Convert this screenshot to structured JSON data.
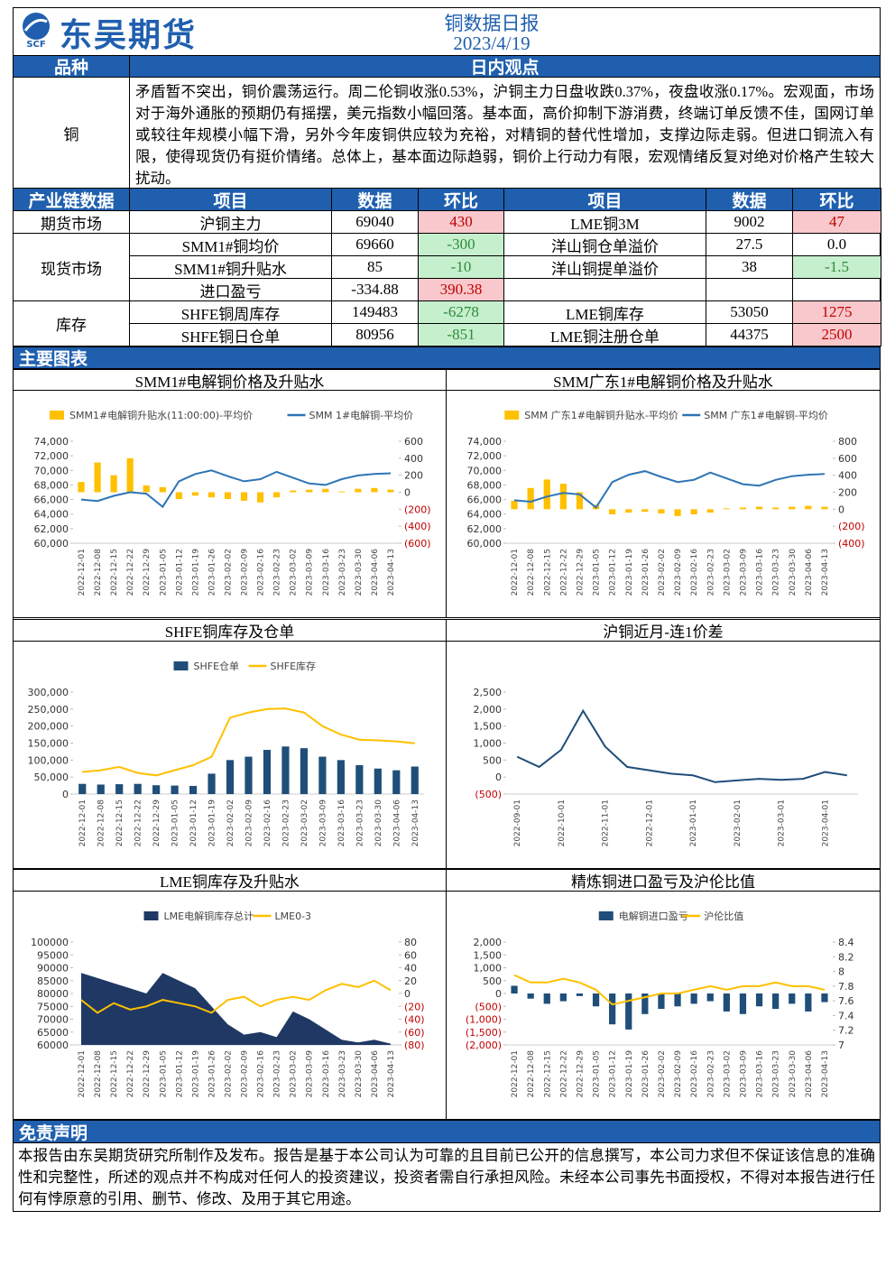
{
  "header": {
    "logo": "东吴期货",
    "logo_mark": "SCF",
    "title": "铜数据日报",
    "date": "2023/4/19"
  },
  "view": {
    "col1": "品种",
    "col2": "日内观点",
    "variety": "铜",
    "text": "矛盾暂不突出，铜价震荡运行。周二伦铜收涨0.53%，沪铜主力日盘收跌0.37%，夜盘收涨0.17%。宏观面，市场对于海外通胀的预期仍有摇摆，美元指数小幅回落。基本面，高价抑制下游消费，终端订单反馈不佳，国网订单或较往年规模小幅下滑，另外今年废铜供应较为充裕，对精铜的替代性增加，支撑边际走弱。但进口铜流入有限，使得现货仍有挺价情绪。总体上，基本面边际趋弱，铜价上行动力有限，宏观情绪反复对绝对价格产生较大扰动。"
  },
  "table": {
    "header": [
      "产业链数据",
      "项目",
      "数据",
      "环比",
      "项目",
      "数据",
      "环比"
    ],
    "groups": [
      {
        "name": "期货市场",
        "rows": [
          [
            "沪铜主力",
            "69040",
            "430",
            "LME铜3M",
            "9002",
            "47"
          ]
        ]
      },
      {
        "name": "现货市场",
        "rows": [
          [
            "SMM1#铜均价",
            "69660",
            "-300",
            "洋山铜仓单溢价",
            "27.5",
            "0.0"
          ],
          [
            "SMM1#铜升贴水",
            "85",
            "-10",
            "洋山铜提单溢价",
            "38",
            "-1.5"
          ],
          [
            "进口盈亏",
            "-334.88",
            "390.38"
          ]
        ]
      },
      {
        "name": "库存",
        "rows": [
          [
            "SHFE铜周库存",
            "149483",
            "-6278",
            "LME铜库存",
            "53050",
            "1275"
          ],
          [
            "SHFE铜日仓单",
            "80956",
            "-851",
            "LME铜注册仓单",
            "44375",
            "2500"
          ]
        ]
      }
    ]
  },
  "charts_title": "主要图表",
  "chart_data": [
    {
      "type": "combo",
      "title": "SMM1#电解铜价格及升贴水",
      "categories": [
        "2022-12-01",
        "2022-12-08",
        "2022-12-15",
        "2022-12-22",
        "2022-12-29",
        "2023-01-05",
        "2023-01-12",
        "2023-01-19",
        "2023-01-26",
        "2023-02-02",
        "2023-02-09",
        "2023-02-16",
        "2023-02-23",
        "2023-03-02",
        "2023-03-09",
        "2023-03-16",
        "2023-03-23",
        "2023-03-30",
        "2023-04-06",
        "2023-04-13"
      ],
      "series": [
        {
          "name": "SMM1#电解铜升贴水(11:00:00)-平均价",
          "type": "bar",
          "axis": "y2",
          "color": "#ffc000",
          "values": [
            120,
            350,
            200,
            400,
            80,
            60,
            -80,
            -40,
            -60,
            -80,
            -100,
            -120,
            -60,
            20,
            30,
            40,
            10,
            40,
            50,
            30
          ]
        },
        {
          "name": "SMM 1#电解铜-平均价",
          "type": "line",
          "color": "#2e75b6",
          "values": [
            66000,
            65800,
            66500,
            67000,
            66800,
            65000,
            68500,
            69500,
            70000,
            69200,
            68500,
            68800,
            69800,
            69000,
            68200,
            68000,
            68800,
            69300,
            69500,
            69600
          ]
        }
      ],
      "ylim": [
        60000,
        74000
      ],
      "yticks": [
        {
          "value": 60000,
          "label": "60,000"
        },
        {
          "value": 62000,
          "label": "62,000"
        },
        {
          "value": 64000,
          "label": "64,000"
        },
        {
          "value": 66000,
          "label": "66,000"
        },
        {
          "value": 68000,
          "label": "68,000"
        },
        {
          "value": 70000,
          "label": "70,000"
        },
        {
          "value": 72000,
          "label": "72,000"
        },
        {
          "value": 74000,
          "label": "74,000"
        }
      ],
      "y2lim": [
        -600,
        600
      ],
      "y2ticks": [
        {
          "value": -600,
          "label": "(600)"
        },
        {
          "value": -400,
          "label": "(400)"
        },
        {
          "value": -200,
          "label": "(200)"
        },
        0,
        200,
        400,
        600
      ]
    },
    {
      "type": "combo",
      "title": "SMM广东1#电解铜价格及升贴水",
      "categories": [
        "2022-12-01",
        "2022-12-08",
        "2022-12-15",
        "2022-12-22",
        "2022-12-29",
        "2023-01-05",
        "2023-01-12",
        "2023-01-19",
        "2023-01-26",
        "2023-02-02",
        "2023-02-09",
        "2023-02-16",
        "2023-02-23",
        "2023-03-02",
        "2023-03-09",
        "2023-03-16",
        "2023-03-23",
        "2023-03-30",
        "2023-04-06",
        "2023-04-13"
      ],
      "series": [
        {
          "name": "SMM 广东1#电解铜升贴水-平均价",
          "type": "bar",
          "axis": "y2",
          "color": "#ffc000",
          "values": [
            100,
            250,
            350,
            300,
            200,
            50,
            -60,
            -40,
            -30,
            -50,
            -80,
            -60,
            -40,
            10,
            20,
            30,
            20,
            30,
            40,
            30
          ]
        },
        {
          "name": "SMM 广东1#电解铜-平均价",
          "type": "line",
          "color": "#2e75b6",
          "values": [
            65900,
            65700,
            66400,
            66900,
            66700,
            64900,
            68400,
            69400,
            69900,
            69100,
            68400,
            68700,
            69700,
            68900,
            68100,
            67900,
            68700,
            69200,
            69400,
            69500
          ]
        }
      ],
      "ylim": [
        60000,
        74000
      ],
      "yticks": [
        {
          "value": 60000,
          "label": "60,000"
        },
        {
          "value": 62000,
          "label": "62,000"
        },
        {
          "value": 64000,
          "label": "64,000"
        },
        {
          "value": 66000,
          "label": "66,000"
        },
        {
          "value": 68000,
          "label": "68,000"
        },
        {
          "value": 70000,
          "label": "70,000"
        },
        {
          "value": 72000,
          "label": "72,000"
        },
        {
          "value": 74000,
          "label": "74,000"
        }
      ],
      "y2lim": [
        -400,
        800
      ],
      "y2ticks": [
        {
          "value": -400,
          "label": "(400)"
        },
        {
          "value": -200,
          "label": "(200)"
        },
        0,
        200,
        400,
        600,
        800
      ]
    },
    {
      "type": "combo",
      "title": "SHFE铜库存及仓单",
      "categories": [
        "2022-12-01",
        "2022-12-08",
        "2022-12-15",
        "2022-12-22",
        "2022-12-29",
        "2023-01-05",
        "2023-01-12",
        "2023-01-19",
        "2023-02-02",
        "2023-02-09",
        "2023-02-16",
        "2023-02-23",
        "2023-03-02",
        "2023-03-09",
        "2023-03-16",
        "2023-03-23",
        "2023-03-30",
        "2023-04-06",
        "2023-04-13"
      ],
      "series": [
        {
          "name": "SHFE仓单",
          "type": "bar",
          "color": "#1f4e79",
          "values": [
            30000,
            28000,
            29000,
            30000,
            26000,
            25000,
            24000,
            60000,
            100000,
            110000,
            130000,
            140000,
            135000,
            110000,
            100000,
            85000,
            75000,
            70000,
            80956
          ]
        },
        {
          "name": "SHFE库存",
          "type": "line",
          "color": "#ffc000",
          "values": [
            65000,
            70000,
            80000,
            62000,
            55000,
            70000,
            85000,
            110000,
            225000,
            240000,
            250000,
            252000,
            240000,
            200000,
            175000,
            160000,
            158000,
            155000,
            149483
          ]
        }
      ],
      "ylim": [
        0,
        300000
      ],
      "yticks": [
        0,
        {
          "value": 50000,
          "label": "50,000"
        },
        {
          "value": 100000,
          "label": "100,000"
        },
        {
          "value": 150000,
          "label": "150,000"
        },
        {
          "value": 200000,
          "label": "200,000"
        },
        {
          "value": 250000,
          "label": "250,000"
        },
        {
          "value": 300000,
          "label": "300,000"
        }
      ]
    },
    {
      "type": "line",
      "title": "沪铜近月-连1价差",
      "categories": [
        "2022-09-01",
        null,
        "2022-10-01",
        null,
        "2022-11-01",
        null,
        "2022-12-01",
        null,
        "2023-01-01",
        null,
        "2023-02-01",
        null,
        "2023-03-01",
        null,
        "2023-04-01",
        null
      ],
      "values": [
        600,
        300,
        800,
        1950,
        900,
        300,
        200,
        100,
        50,
        -150,
        -100,
        -50,
        -80,
        -50,
        150,
        50
      ],
      "color": "#1f4e79",
      "ylim": [
        -500,
        2500
      ],
      "yticks": [
        {
          "value": -500,
          "label": "(500)"
        },
        0,
        500,
        {
          "value": 1000,
          "label": "1,000"
        },
        {
          "value": 1500,
          "label": "1,500"
        },
        {
          "value": 2000,
          "label": "2,000"
        },
        {
          "value": 2500,
          "label": "2,500"
        }
      ]
    },
    {
      "type": "combo",
      "title": "LME铜库存及升贴水",
      "categories": [
        "2022-12-01",
        "2022-12-08",
        "2022-12-15",
        "2022-12-22",
        "2022-12-29",
        "2023-01-05",
        "2023-01-12",
        "2023-01-19",
        "2023-01-26",
        "2023-02-02",
        "2023-02-09",
        "2023-02-16",
        "2023-02-23",
        "2023-03-02",
        "2023-03-09",
        "2023-03-16",
        "2023-03-23",
        "2023-03-30",
        "2023-04-06",
        "2023-04-13"
      ],
      "series": [
        {
          "name": "LME电解铜库存总计",
          "type": "area",
          "color": "#1f3864",
          "values": [
            88000,
            86000,
            84000,
            82000,
            80000,
            88000,
            85000,
            82000,
            75000,
            68000,
            64000,
            65000,
            63000,
            73000,
            70000,
            66000,
            62000,
            61000,
            62000,
            60500
          ]
        },
        {
          "name": "LME0-3",
          "type": "line",
          "axis": "y2",
          "color": "#ffc000",
          "values": [
            -10,
            -30,
            -15,
            -25,
            -20,
            -10,
            -15,
            -20,
            -30,
            -10,
            -5,
            -20,
            -10,
            -5,
            -10,
            5,
            15,
            10,
            20,
            5
          ]
        }
      ],
      "ylim": [
        60000,
        100000
      ],
      "yticks": [
        60000,
        65000,
        70000,
        75000,
        80000,
        85000,
        90000,
        95000,
        100000
      ],
      "y2lim": [
        -80,
        80
      ],
      "y2ticks": [
        {
          "value": -80,
          "label": "(80)"
        },
        {
          "value": -60,
          "label": "(60)"
        },
        {
          "value": -40,
          "label": "(40)"
        },
        {
          "value": -20,
          "label": "(20)"
        },
        0,
        20,
        40,
        60,
        80
      ]
    },
    {
      "type": "combo",
      "title": "精炼铜进口盈亏及沪伦比值",
      "categories": [
        "2022-12-01",
        "2022-12-08",
        "2022-12-15",
        "2022-12-22",
        "2022-12-29",
        "2023-01-05",
        "2023-01-12",
        "2023-01-19",
        "2023-01-26",
        "2023-02-02",
        "2023-02-09",
        "2023-02-16",
        "2023-02-23",
        "2023-03-02",
        "2023-03-09",
        "2023-03-16",
        "2023-03-23",
        "2023-03-30",
        "2023-04-06",
        "2023-04-13"
      ],
      "series": [
        {
          "name": "电解铜进口盈亏",
          "type": "bar",
          "color": "#1f4e79",
          "values": [
            300,
            -200,
            -400,
            -300,
            -100,
            -500,
            -1200,
            -1400,
            -800,
            -600,
            -500,
            -400,
            -300,
            -700,
            -800,
            -500,
            -600,
            -400,
            -700,
            -335
          ]
        },
        {
          "name": "沪伦比值",
          "type": "line",
          "axis": "y2",
          "color": "#ffc000",
          "values": [
            7.95,
            7.85,
            7.85,
            7.9,
            7.85,
            7.75,
            7.55,
            7.6,
            7.65,
            7.7,
            7.7,
            7.75,
            7.8,
            7.75,
            7.8,
            7.8,
            7.85,
            7.8,
            7.8,
            7.75
          ]
        }
      ],
      "ylim": [
        -2000,
        2000
      ],
      "yticks": [
        {
          "value": -2000,
          "label": "(2,000)"
        },
        {
          "value": -1500,
          "label": "(1,500)"
        },
        {
          "value": -1000,
          "label": "(1,000)"
        },
        {
          "value": -500,
          "label": "(500)"
        },
        0,
        500,
        {
          "value": 1000,
          "label": "1,000"
        },
        {
          "value": 1500,
          "label": "1,500"
        },
        {
          "value": 2000,
          "label": "2,000"
        }
      ],
      "y2lim": [
        7,
        8.4
      ],
      "y2ticks": [
        7,
        7.2,
        7.4,
        7.6,
        7.8,
        8,
        8.2,
        8.4
      ]
    }
  ],
  "disclaimer": {
    "title": "免责声明",
    "text": "本报告由东吴期货研究所制作及发布。报告是基于本公司认为可靠的且目前已公开的信息撰写，本公司力求但不保证该信息的准确性和完整性，所述的观点并不构成对任何人的投资建议，投资者需自行承担风险。未经本公司事先书面授权，不得对本报告进行任何有悖原意的引用、删节、修改、及用于其它用途。"
  }
}
